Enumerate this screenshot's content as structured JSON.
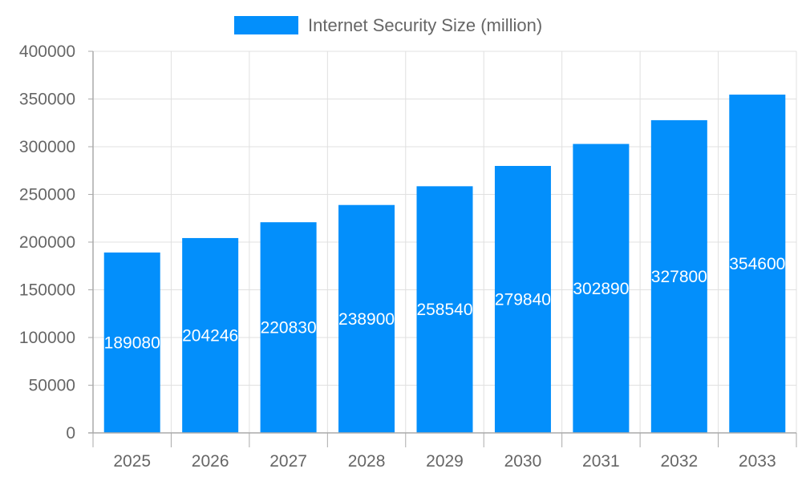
{
  "chart_data": {
    "type": "bar",
    "categories": [
      "2025",
      "2026",
      "2027",
      "2028",
      "2029",
      "2030",
      "2031",
      "2032",
      "2033"
    ],
    "series": [
      {
        "name": "Internet Security Size (million)",
        "values": [
          189080,
          204246,
          220830,
          238900,
          258540,
          279840,
          302890,
          327800,
          354600
        ]
      }
    ],
    "ylim": [
      0,
      400000
    ],
    "yticks": [
      0,
      50000,
      100000,
      150000,
      200000,
      250000,
      300000,
      350000,
      400000
    ],
    "grid": true,
    "legend": "top",
    "data_labels": true,
    "colors": {
      "bar": "#038ffb",
      "grid": "#e0e0e0",
      "axis": "#aaaaaa",
      "text": "#666666",
      "label": "#ffffff"
    }
  }
}
